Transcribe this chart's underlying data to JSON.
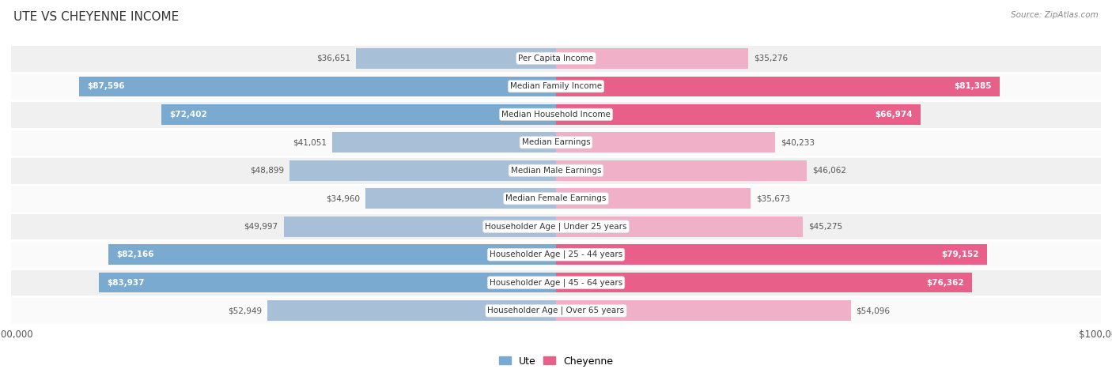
{
  "title": "UTE VS CHEYENNE INCOME",
  "source": "Source: ZipAtlas.com",
  "categories": [
    "Per Capita Income",
    "Median Family Income",
    "Median Household Income",
    "Median Earnings",
    "Median Male Earnings",
    "Median Female Earnings",
    "Householder Age | Under 25 years",
    "Householder Age | 25 - 44 years",
    "Householder Age | 45 - 64 years",
    "Householder Age | Over 65 years"
  ],
  "ute_values": [
    36651,
    87596,
    72402,
    41051,
    48899,
    34960,
    49997,
    82166,
    83937,
    52949
  ],
  "cheyenne_values": [
    35276,
    81385,
    66974,
    40233,
    46062,
    35673,
    45275,
    79152,
    76362,
    54096
  ],
  "ute_labels": [
    "$36,651",
    "$87,596",
    "$72,402",
    "$41,051",
    "$48,899",
    "$34,960",
    "$49,997",
    "$82,166",
    "$83,937",
    "$52,949"
  ],
  "cheyenne_labels": [
    "$35,276",
    "$81,385",
    "$66,974",
    "$40,233",
    "$46,062",
    "$35,673",
    "$45,275",
    "$79,152",
    "$76,362",
    "$54,096"
  ],
  "ute_color_light": "#a8bfd8",
  "ute_color_dark": "#7aaad0",
  "cheyenne_color_light": "#f0b0c8",
  "cheyenne_color_dark": "#e8608a",
  "threshold": 60000,
  "max_val": 100000,
  "background_color": "#ffffff",
  "row_bg_even": "#f0f0f0",
  "row_bg_odd": "#fafafa",
  "title_fontsize": 11,
  "label_fontsize": 8,
  "bar_height": 0.72
}
